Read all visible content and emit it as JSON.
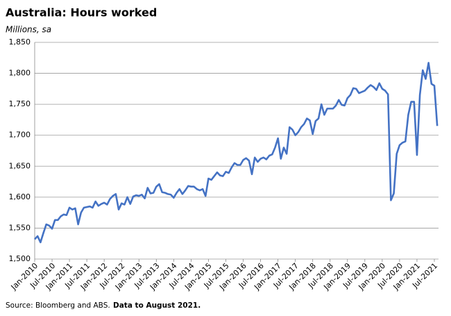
{
  "chart_data": {
    "type": "line",
    "title": "Australia: Hours worked",
    "subtitle": "Millions, sa",
    "source": "Source: Bloomberg and ABS.",
    "note": "Data to August 2021.",
    "categories": [
      "Jan-2010",
      null,
      null,
      null,
      null,
      null,
      "Jul-2010",
      null,
      null,
      null,
      null,
      null,
      "Jan-2011",
      null,
      null,
      null,
      null,
      null,
      "Jul-2011",
      null,
      null,
      null,
      null,
      null,
      "Jan-2012",
      null,
      null,
      null,
      null,
      null,
      "Jul-2012",
      null,
      null,
      null,
      null,
      null,
      "Jan-2013",
      null,
      null,
      null,
      null,
      null,
      "Jul-2013",
      null,
      null,
      null,
      null,
      null,
      "Jan-2014",
      null,
      null,
      null,
      null,
      null,
      "Jul-2014",
      null,
      null,
      null,
      null,
      null,
      "Jan-2015",
      null,
      null,
      null,
      null,
      null,
      "Jul-2015",
      null,
      null,
      null,
      null,
      null,
      "Jan-2016",
      null,
      null,
      null,
      null,
      null,
      "Jul-2016",
      null,
      null,
      null,
      null,
      null,
      "Jan-2017",
      null,
      null,
      null,
      null,
      null,
      "Jul-2017",
      null,
      null,
      null,
      null,
      null,
      "Jan-2018",
      null,
      null,
      null,
      null,
      null,
      "Jul-2018",
      null,
      null,
      null,
      null,
      null,
      "Jan-2019",
      null,
      null,
      null,
      null,
      null,
      "Jul-2019",
      null,
      null,
      null,
      null,
      null,
      "Jan-2020",
      null,
      null,
      null,
      null,
      null,
      "Jul-2020",
      null,
      null,
      null,
      null,
      null,
      "Jan-2021",
      null,
      null,
      null,
      null,
      null,
      "Jul-2021",
      null
    ],
    "series": [
      {
        "name": "Hours worked",
        "color": "#4472c4",
        "values": [
          1532,
          1537,
          1527,
          1542,
          1556,
          1554,
          1549,
          1563,
          1563,
          1569,
          1572,
          1571,
          1583,
          1580,
          1582,
          1556,
          1575,
          1583,
          1584,
          1585,
          1583,
          1593,
          1586,
          1589,
          1591,
          1588,
          1597,
          1602,
          1605,
          1580,
          1590,
          1588,
          1600,
          1589,
          1601,
          1603,
          1602,
          1604,
          1598,
          1615,
          1606,
          1607,
          1617,
          1621,
          1608,
          1607,
          1605,
          1604,
          1599,
          1607,
          1613,
          1605,
          1611,
          1618,
          1617,
          1617,
          1613,
          1611,
          1613,
          1602,
          1630,
          1628,
          1634,
          1640,
          1635,
          1634,
          1641,
          1639,
          1648,
          1655,
          1652,
          1652,
          1660,
          1663,
          1659,
          1637,
          1664,
          1657,
          1662,
          1664,
          1661,
          1667,
          1669,
          1680,
          1695,
          1662,
          1680,
          1670,
          1713,
          1709,
          1700,
          1705,
          1713,
          1718,
          1727,
          1724,
          1702,
          1723,
          1727,
          1750,
          1733,
          1743,
          1743,
          1743,
          1748,
          1757,
          1749,
          1748,
          1760,
          1765,
          1776,
          1775,
          1768,
          1770,
          1772,
          1777,
          1781,
          1778,
          1773,
          1784,
          1775,
          1772,
          1766,
          1595,
          1606,
          1670,
          1684,
          1688,
          1690,
          1733,
          1754,
          1754,
          1668,
          1765,
          1805,
          1791,
          1817,
          1783,
          1780,
          1715
        ]
      }
    ],
    "ylim": [
      1500,
      1850
    ],
    "yticks": [
      {
        "value": 1500,
        "label": "1,500"
      },
      {
        "value": 1550,
        "label": "1,550"
      },
      {
        "value": 1600,
        "label": "1,600"
      },
      {
        "value": 1650,
        "label": "1,650"
      },
      {
        "value": 1700,
        "label": "1,700"
      },
      {
        "value": 1750,
        "label": "1,750"
      },
      {
        "value": 1800,
        "label": "1,800"
      },
      {
        "value": 1850,
        "label": "1,850"
      }
    ],
    "grid": true
  }
}
